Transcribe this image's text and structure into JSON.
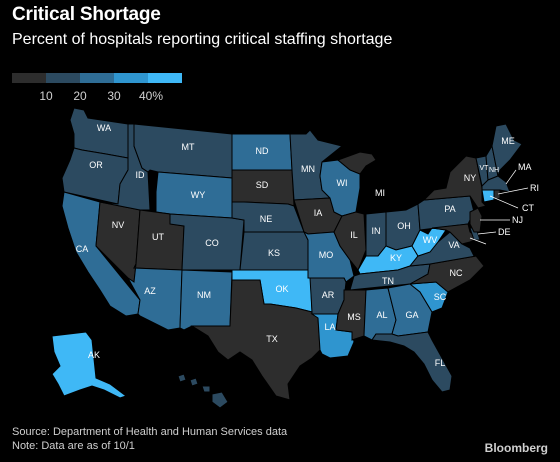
{
  "header": {
    "title": "Critical Shortage",
    "subtitle": "Percent of hospitals reporting critical staffing shortage"
  },
  "legend": {
    "bins": [
      {
        "color": "#2d2d2d",
        "label": "10"
      },
      {
        "color": "#2c4a60",
        "label": "20"
      },
      {
        "color": "#2f6d96",
        "label": "30"
      },
      {
        "color": "#2f95cf",
        "label": "40%"
      },
      {
        "color": "#3fb8f6",
        "label": ""
      }
    ]
  },
  "colors": {
    "c0": "#2d2d2d",
    "c1": "#2c4a60",
    "c2": "#2f6d96",
    "c3": "#2f95cf",
    "c4": "#3fb8f6"
  },
  "states": [
    {
      "code": "WA",
      "bin": 1
    },
    {
      "code": "OR",
      "bin": 1
    },
    {
      "code": "CA",
      "bin": 2
    },
    {
      "code": "ID",
      "bin": 1
    },
    {
      "code": "NV",
      "bin": 0
    },
    {
      "code": "MT",
      "bin": 1
    },
    {
      "code": "WY",
      "bin": 2
    },
    {
      "code": "UT",
      "bin": 0
    },
    {
      "code": "AZ",
      "bin": 2
    },
    {
      "code": "CO",
      "bin": 1
    },
    {
      "code": "NM",
      "bin": 2
    },
    {
      "code": "ND",
      "bin": 2
    },
    {
      "code": "SD",
      "bin": 0
    },
    {
      "code": "NE",
      "bin": 1
    },
    {
      "code": "KS",
      "bin": 1
    },
    {
      "code": "OK",
      "bin": 4
    },
    {
      "code": "TX",
      "bin": 0
    },
    {
      "code": "MN",
      "bin": 1
    },
    {
      "code": "IA",
      "bin": 0
    },
    {
      "code": "MO",
      "bin": 2
    },
    {
      "code": "AR",
      "bin": 1
    },
    {
      "code": "LA",
      "bin": 3
    },
    {
      "code": "WI",
      "bin": 2
    },
    {
      "code": "IL",
      "bin": 0
    },
    {
      "code": "MI",
      "bin": 0
    },
    {
      "code": "IN",
      "bin": 1
    },
    {
      "code": "OH",
      "bin": 1
    },
    {
      "code": "KY",
      "bin": 4
    },
    {
      "code": "TN",
      "bin": 1
    },
    {
      "code": "MS",
      "bin": 0
    },
    {
      "code": "AL",
      "bin": 2
    },
    {
      "code": "GA",
      "bin": 2
    },
    {
      "code": "FL",
      "bin": 1
    },
    {
      "code": "SC",
      "bin": 3
    },
    {
      "code": "NC",
      "bin": 0
    },
    {
      "code": "VA",
      "bin": 1
    },
    {
      "code": "WV",
      "bin": 4
    },
    {
      "code": "PA",
      "bin": 1
    },
    {
      "code": "NY",
      "bin": 0
    },
    {
      "code": "VT",
      "bin": 1
    },
    {
      "code": "NH",
      "bin": 1
    },
    {
      "code": "ME",
      "bin": 1
    },
    {
      "code": "MA",
      "bin": 1
    },
    {
      "code": "RI",
      "bin": 0
    },
    {
      "code": "CT",
      "bin": 4
    },
    {
      "code": "NJ",
      "bin": 0
    },
    {
      "code": "DE",
      "bin": 1
    },
    {
      "code": "MD",
      "bin": 0
    },
    {
      "code": "AK",
      "bin": 4
    },
    {
      "code": "HI",
      "bin": 1
    }
  ],
  "footer": {
    "source": "Source: Department of Health and Human Services data",
    "note": "Note: Data are as of 10/1",
    "brand": "Bloomberg"
  }
}
